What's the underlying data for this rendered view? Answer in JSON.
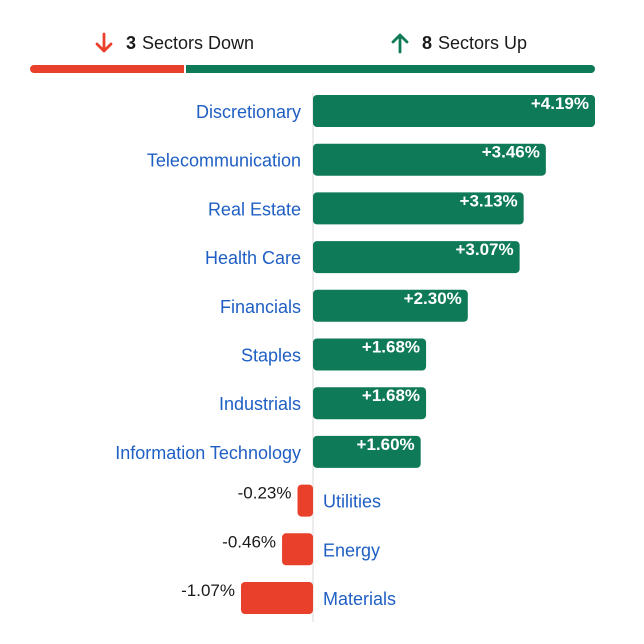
{
  "summary": {
    "down_count": "3",
    "down_label": "Sectors Down",
    "up_count": "8",
    "up_label": "Sectors Up"
  },
  "colors": {
    "up": "#0e7a57",
    "down": "#e8402a",
    "label": "#1f5fc4",
    "axis": "#d9d9d9"
  },
  "chart_data": {
    "type": "bar",
    "orientation": "horizontal",
    "categories": [
      "Discretionary",
      "Telecommunication",
      "Real Estate",
      "Health Care",
      "Financials",
      "Staples",
      "Industrials",
      "Information Technology",
      "Utilities",
      "Energy",
      "Materials"
    ],
    "values": [
      4.19,
      3.46,
      3.13,
      3.07,
      2.3,
      1.68,
      1.68,
      1.6,
      -0.23,
      -0.46,
      -1.07
    ],
    "value_labels": [
      "+4.19%",
      "+3.46%",
      "+3.13%",
      "+3.07%",
      "+2.30%",
      "+1.68%",
      "+1.68%",
      "+1.60%",
      "-0.23%",
      "-0.46%",
      "-1.07%"
    ],
    "title": "",
    "xlabel": "",
    "ylabel": "",
    "xlim": [
      -1.07,
      4.19
    ],
    "grid": false,
    "legend": "none"
  }
}
